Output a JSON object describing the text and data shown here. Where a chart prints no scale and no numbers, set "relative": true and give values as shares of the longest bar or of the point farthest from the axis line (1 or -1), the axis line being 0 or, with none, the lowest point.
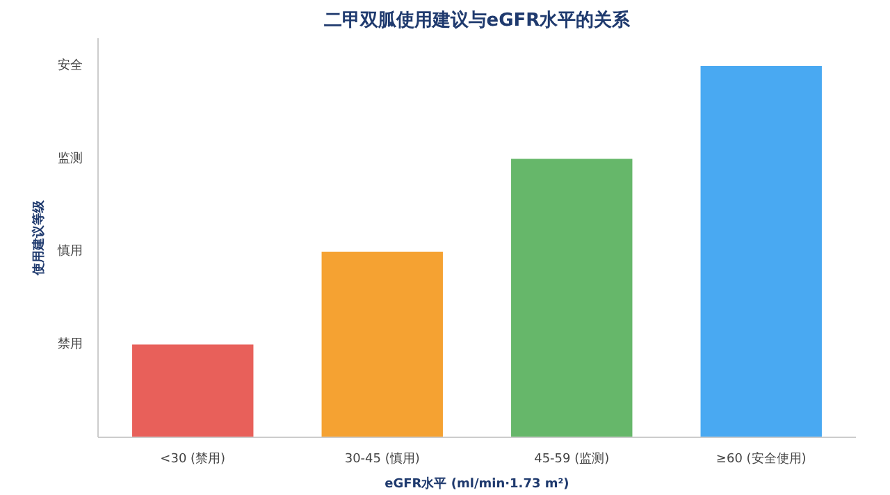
{
  "chart_data": {
    "type": "bar",
    "title": "二甲双胍使用建议与eGFR水平的关系",
    "xlabel": "eGFR水平 (ml/min·1.73 m²)",
    "ylabel": "使用建议等级",
    "categories": [
      "<30 (禁用)",
      "30-45 (慎用)",
      "45-59 (监测)",
      "≥60 (安全使用)"
    ],
    "values": [
      0.25,
      0.5,
      0.75,
      1
    ],
    "colors": [
      "#e8605a",
      "#f5a232",
      "#66b76a",
      "#49a9f2"
    ],
    "relative": true,
    "annotations": [
      "禁用",
      "慎用",
      "监测",
      "安全"
    ],
    "grid": false
  }
}
